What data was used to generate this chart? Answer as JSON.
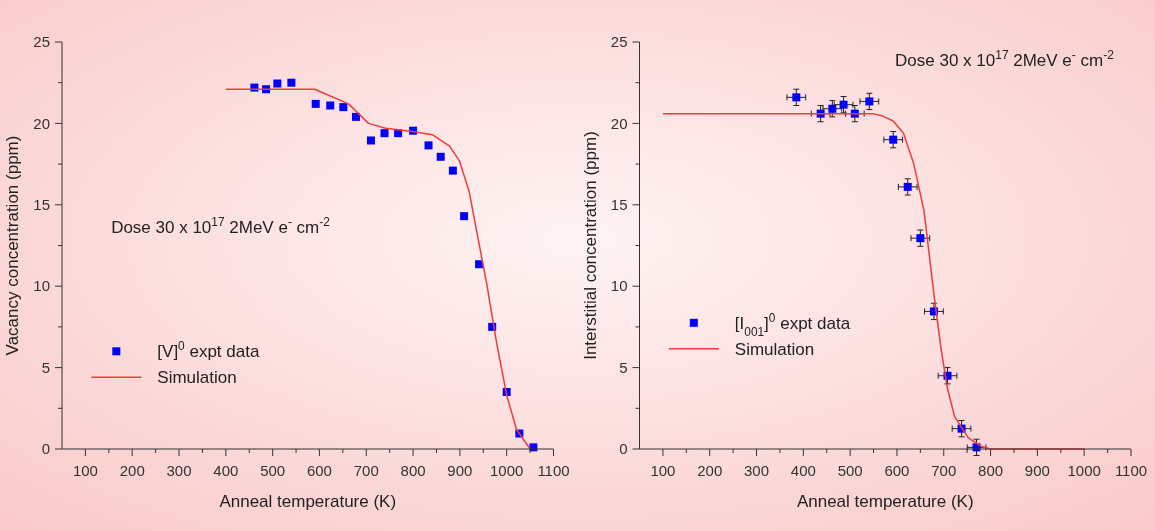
{
  "chart_data": [
    {
      "type": "scatter",
      "xlabel": "Anneal temperature (K)",
      "ylabel": "Vacancy concentration (ppm)",
      "xlim": [
        50,
        1100
      ],
      "ylim": [
        0,
        25
      ],
      "xticks": [
        100,
        {
          "value": 150,
          "label": null
        },
        200,
        {
          "value": 250,
          "label": null
        },
        300,
        {
          "value": 350,
          "label": null
        },
        400,
        {
          "value": 450,
          "label": null
        },
        500,
        {
          "value": 550,
          "label": null
        },
        600,
        {
          "value": 650,
          "label": null
        },
        700,
        {
          "value": 750,
          "label": null
        },
        800,
        {
          "value": 850,
          "label": null
        },
        900,
        {
          "value": 950,
          "label": null
        },
        1000,
        {
          "value": 1050,
          "label": null
        },
        1100
      ],
      "yticks": [
        0,
        {
          "value": 2.5,
          "label": null
        },
        5,
        {
          "value": 7.5,
          "label": null
        },
        10,
        {
          "value": 12.5,
          "label": null
        },
        15,
        {
          "value": 17.5,
          "label": null
        },
        20,
        {
          "value": 22.5,
          "label": null
        },
        25
      ],
      "annotations": [
        "Dose 30 x 10$^{17}$ 2MeV e$^{-}$ cm$^{-2}$"
      ],
      "legend": "left",
      "series": [
        {
          "name": "[V]$^{0}$ expt data",
          "marker": "square",
          "color": "#0000ff",
          "x": [
            461,
            486,
            510,
            540,
            592,
            623,
            651,
            678,
            710,
            739,
            768,
            800,
            833,
            859,
            885,
            909,
            941,
            969,
            1000,
            1027,
            1057
          ],
          "values": [
            22.2,
            22.1,
            22.45,
            22.5,
            21.2,
            21.1,
            21.0,
            20.4,
            18.95,
            19.4,
            19.4,
            19.55,
            18.65,
            17.95,
            17.1,
            14.3,
            11.35,
            7.5,
            3.5,
            0.95,
            0.1
          ]
        },
        {
          "name": "Simulation",
          "type": "line",
          "marker": "none",
          "color": "#f03c3c",
          "x": [
            400,
            590,
            662,
            705,
            741,
            798,
            842,
            878,
            899,
            920,
            935,
            957,
            978,
            1000,
            1021,
            1050
          ],
          "values": [
            22.1,
            22.1,
            21.2,
            20.0,
            19.7,
            19.5,
            19.3,
            18.6,
            17.7,
            15.8,
            13.5,
            10.2,
            6.6,
            3.3,
            1.2,
            0
          ]
        }
      ]
    },
    {
      "type": "scatter",
      "xlabel": "Anneal temperature (K)",
      "ylabel": "Interstitial concentration (ppm)",
      "xlim": [
        50,
        1100
      ],
      "ylim": [
        0,
        25
      ],
      "xticks": [
        100,
        {
          "value": 150,
          "label": null
        },
        200,
        {
          "value": 250,
          "label": null
        },
        300,
        {
          "value": 350,
          "label": null
        },
        400,
        {
          "value": 450,
          "label": null
        },
        500,
        {
          "value": 550,
          "label": null
        },
        600,
        {
          "value": 650,
          "label": null
        },
        700,
        {
          "value": 750,
          "label": null
        },
        800,
        {
          "value": 850,
          "label": null
        },
        900,
        {
          "value": 950,
          "label": null
        },
        1000,
        {
          "value": 1050,
          "label": null
        },
        1100
      ],
      "yticks": [
        0,
        {
          "value": 2.5,
          "label": null
        },
        5,
        {
          "value": 7.5,
          "label": null
        },
        10,
        {
          "value": 12.5,
          "label": null
        },
        15,
        {
          "value": 17.5,
          "label": null
        },
        20,
        {
          "value": 22.5,
          "label": null
        },
        25
      ],
      "annotations": [
        "Dose 30 x 10$^{17}$ 2MeV e$^{-}$ cm$^{-2}$"
      ],
      "legend": "left",
      "series": [
        {
          "name": "[I$_{001}$]$^{0}$ expt data",
          "marker": "square",
          "color": "#0000ff",
          "x": [
            385,
            437,
            462,
            486,
            510,
            541,
            592,
            623,
            650,
            679,
            708,
            738,
            770
          ],
          "values": [
            21.6,
            20.6,
            20.9,
            21.15,
            20.6,
            21.35,
            19.0,
            16.1,
            12.95,
            8.45,
            4.5,
            1.25,
            0.1
          ],
          "errors": [
            0.5,
            0.5,
            0.5,
            0.5,
            0.5,
            0.5,
            0.5,
            0.5,
            0.5,
            0.5,
            0.5,
            0.5,
            0.5
          ],
          "xerrors": [
            20,
            20,
            20,
            20,
            20,
            20,
            20,
            20,
            20,
            20,
            20,
            20,
            20
          ]
        },
        {
          "name": "Simulation",
          "type": "line",
          "marker": "none",
          "color": "#f03c3c",
          "x": [
            100,
            548,
            570,
            592,
            614,
            636,
            658,
            679,
            694,
            708,
            723,
            752,
            781,
            800,
            1000
          ],
          "values": [
            20.6,
            20.6,
            20.45,
            20.15,
            19.4,
            17.5,
            14.6,
            9.5,
            6.2,
            3.7,
            2.0,
            0.7,
            0.15,
            0,
            0
          ]
        }
      ]
    }
  ]
}
